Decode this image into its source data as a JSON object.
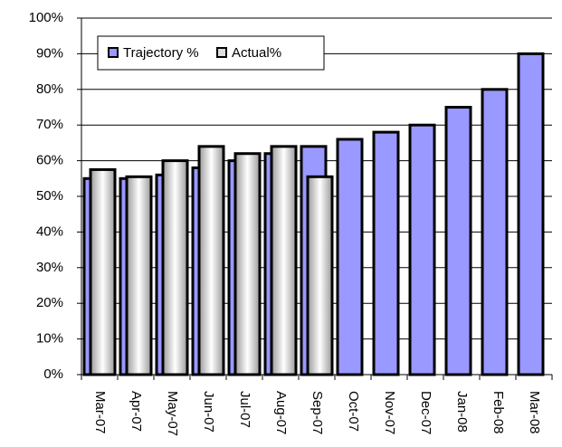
{
  "chart_data": {
    "type": "bar",
    "categories": [
      "Mar-07",
      "Apr-07",
      "May-07",
      "Jun-07",
      "Jul-07",
      "Aug-07",
      "Sep-07",
      "Oct-07",
      "Nov-07",
      "Dec-07",
      "Jan-08",
      "Feb-08",
      "Mar-08"
    ],
    "series": [
      {
        "name": "Trajectory %",
        "color": "#9999ff",
        "values": [
          55,
          55,
          56,
          58,
          60,
          62,
          64,
          66,
          68,
          70,
          75,
          80,
          90
        ]
      },
      {
        "name": "Actual%",
        "color": "#c0c0c0",
        "values": [
          57.5,
          55.5,
          60,
          64,
          62,
          64,
          55.5,
          null,
          null,
          null,
          null,
          null,
          null
        ]
      }
    ],
    "ylim": [
      0,
      100
    ],
    "yticks": [
      {
        "value": 0,
        "label": "0%"
      },
      {
        "value": 10,
        "label": "10%"
      },
      {
        "value": 20,
        "label": "20%"
      },
      {
        "value": 30,
        "label": "30%"
      },
      {
        "value": 40,
        "label": "40%"
      },
      {
        "value": 50,
        "label": "50%"
      },
      {
        "value": 60,
        "label": "60%"
      },
      {
        "value": 70,
        "label": "70%"
      },
      {
        "value": 80,
        "label": "80%"
      },
      {
        "value": 90,
        "label": "90%"
      },
      {
        "value": 100,
        "label": "100%"
      }
    ],
    "grid": true,
    "legend": "top-left"
  }
}
